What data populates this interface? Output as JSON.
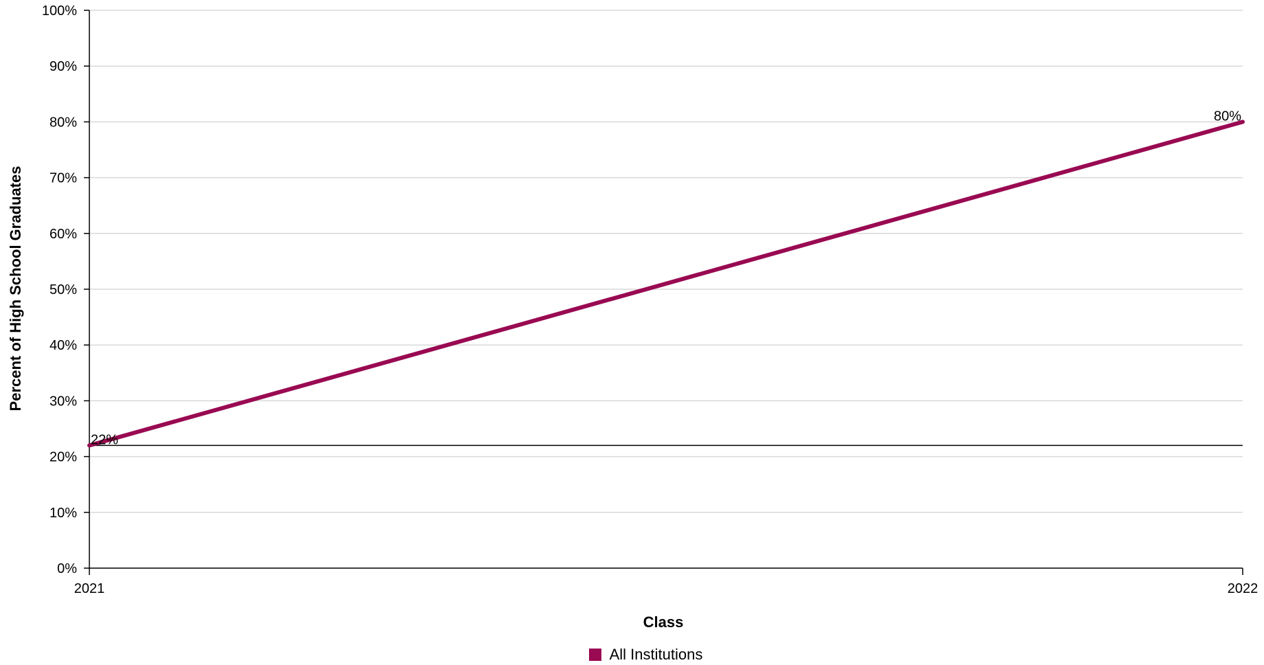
{
  "chart_data": {
    "type": "line",
    "x": [
      "2021",
      "2022"
    ],
    "xlabel": "Class",
    "ylabel": "Percent of High School Graduates",
    "ylim": [
      0,
      100
    ],
    "yticks": [
      "0%",
      "10%",
      "20%",
      "30%",
      "40%",
      "50%",
      "60%",
      "70%",
      "80%",
      "90%",
      "100%"
    ],
    "grid": true,
    "reference_line": 22,
    "legend_position": "bottom",
    "series": [
      {
        "name": "All Institutions",
        "color": "#990a52",
        "values": [
          22,
          80
        ],
        "labels": [
          "22%",
          "80%"
        ]
      }
    ]
  }
}
